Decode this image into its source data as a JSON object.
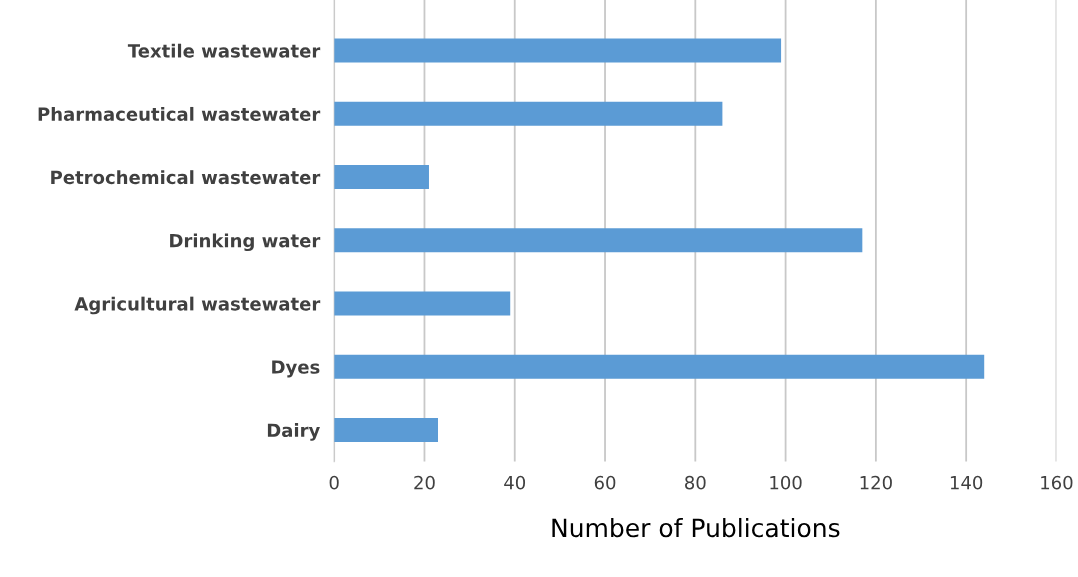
{
  "chart_data": {
    "type": "bar",
    "orientation": "horizontal",
    "xlabel": "Number of Publications",
    "categories": [
      "Textile wastewater",
      "Pharmaceutical wastewater",
      "Petrochemical wastewater",
      "Drinking water",
      "Agricultural wastewater",
      "Dyes",
      "Dairy"
    ],
    "values": [
      99,
      86,
      21,
      117,
      39,
      144,
      23
    ],
    "color": "#5b9bd5",
    "xlim": [
      0,
      160
    ],
    "xticks": [
      0,
      20,
      40,
      60,
      80,
      100,
      120,
      140,
      160
    ],
    "grid": "x"
  }
}
